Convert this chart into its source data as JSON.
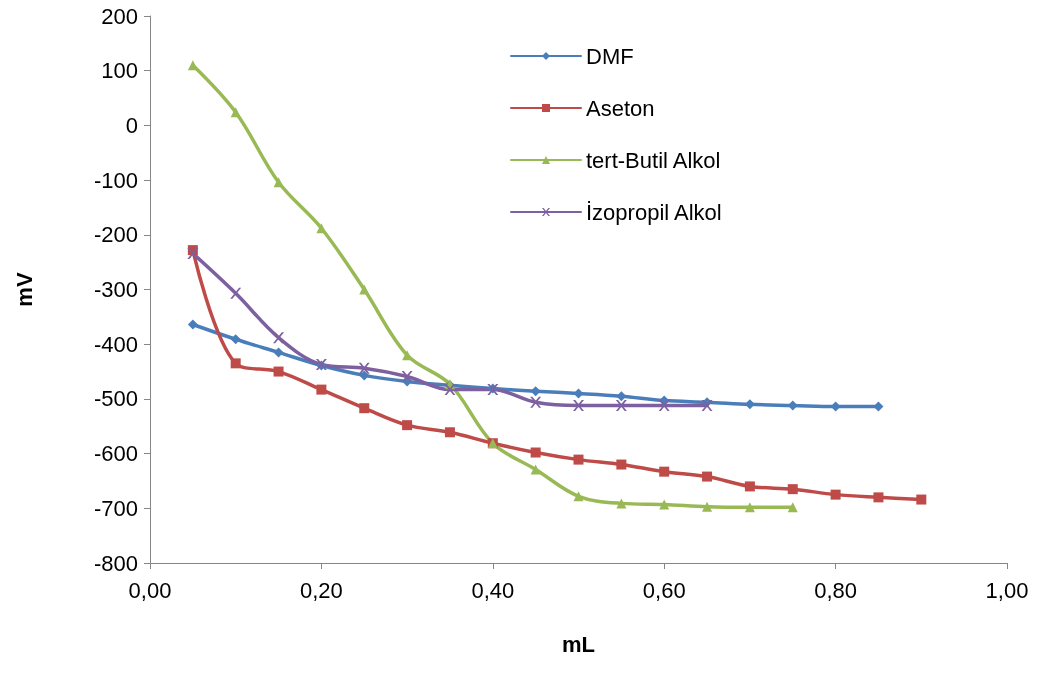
{
  "chart_data": {
    "type": "line",
    "xlabel": "mL",
    "ylabel": "mV",
    "legend": "top right",
    "grid": false,
    "xlim": [
      0,
      1
    ],
    "xticks": [
      {
        "value": 0,
        "label": "0,00"
      },
      {
        "value": 0.2,
        "label": "0,20"
      },
      {
        "value": 0.4,
        "label": "0,40"
      },
      {
        "value": 0.6,
        "label": "0,60"
      },
      {
        "value": 0.8,
        "label": "0,80"
      },
      {
        "value": 1,
        "label": "1,00"
      }
    ],
    "ylim": [
      -800,
      200
    ],
    "yticks": [
      -800,
      -700,
      -600,
      -500,
      -400,
      -300,
      -200,
      -100,
      0,
      100,
      200
    ],
    "series": [
      {
        "name": "DMF",
        "color": "#4a7ebb",
        "marker": "diamond",
        "x": [
          0.05,
          0.1,
          0.15,
          0.2,
          0.25,
          0.3,
          0.35,
          0.4,
          0.45,
          0.5,
          0.55,
          0.6,
          0.65,
          0.7,
          0.75,
          0.8,
          0.85
        ],
        "values": [
          -364,
          -391,
          -415,
          -439,
          -457,
          -468,
          -475,
          -481,
          -486,
          -490,
          -495,
          -503,
          -506,
          -510,
          -512,
          -514,
          -514
        ]
      },
      {
        "name": "Aseton",
        "color": "#be4b48",
        "marker": "square",
        "x": [
          0.05,
          0.1,
          0.15,
          0.2,
          0.25,
          0.3,
          0.35,
          0.4,
          0.45,
          0.5,
          0.55,
          0.6,
          0.65,
          0.7,
          0.75,
          0.8,
          0.85,
          0.9
        ],
        "values": [
          -228,
          -435,
          -450,
          -483,
          -517,
          -548,
          -561,
          -581,
          -598,
          -611,
          -620,
          -633,
          -642,
          -660,
          -665,
          -675,
          -680,
          -684
        ]
      },
      {
        "name": "tert-Butil Alkol",
        "color": "#98b954",
        "marker": "triangle",
        "x": [
          0.05,
          0.1,
          0.15,
          0.2,
          0.25,
          0.3,
          0.35,
          0.4,
          0.45,
          0.5,
          0.55,
          0.6,
          0.65,
          0.7,
          0.75
        ],
        "values": [
          110,
          24,
          -104,
          -188,
          -300,
          -420,
          -473,
          -581,
          -629,
          -678,
          -691,
          -693,
          -697,
          -698,
          -698
        ]
      },
      {
        "name": "İzopropil Alkol",
        "color": "#7d60a0",
        "marker": "cross",
        "x": [
          0.05,
          0.1,
          0.15,
          0.2,
          0.25,
          0.3,
          0.35,
          0.4,
          0.45,
          0.5,
          0.55,
          0.6,
          0.65
        ],
        "values": [
          -234,
          -307,
          -388,
          -437,
          -444,
          -459,
          -483,
          -483,
          -506,
          -512,
          -512,
          -512,
          -512
        ]
      }
    ]
  }
}
